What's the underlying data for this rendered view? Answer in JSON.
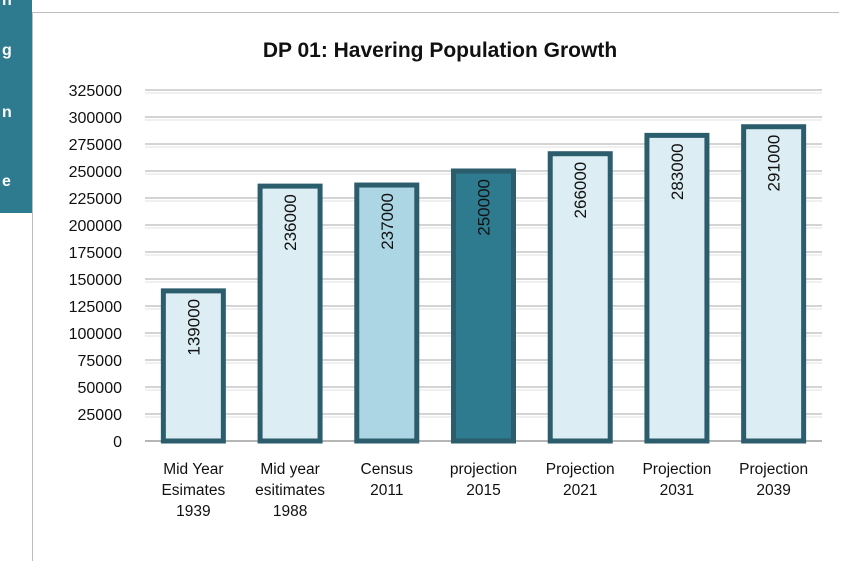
{
  "side_panel": {
    "fragments": [
      "n",
      "g",
      "n",
      "e"
    ],
    "color": "#2e7a8f"
  },
  "chart_data": {
    "type": "bar",
    "title": "DP 01: Havering Population Growth",
    "categories": [
      [
        "Mid Year",
        "Esimates",
        "1939"
      ],
      [
        "Mid year",
        "esitimates",
        "1988"
      ],
      [
        "Census",
        "2011"
      ],
      [
        "projection",
        "2015"
      ],
      [
        "Projection",
        "2021"
      ],
      [
        "Projection",
        "2031"
      ],
      [
        "Projection",
        "2039"
      ]
    ],
    "values": [
      139000,
      236000,
      237000,
      250000,
      266000,
      283000,
      291000
    ],
    "data_labels": [
      "139000",
      "236000",
      "237000",
      "250000",
      "266000",
      "283000",
      "291000"
    ],
    "ylim": [
      0,
      325000
    ],
    "ytick_step": 25000,
    "grid": true,
    "legend": "none",
    "bar_fills": [
      "#dcedf3",
      "#dcedf3",
      "#acd6e4",
      "#2e7a8f",
      "#dcedf3",
      "#dcedf3",
      "#dcedf3"
    ],
    "bar_border": "#2b5d6c",
    "xlabel": "",
    "ylabel": ""
  }
}
